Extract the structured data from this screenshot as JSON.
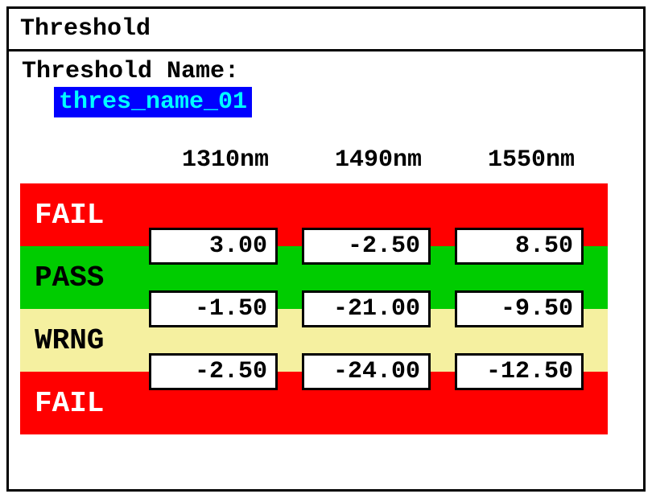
{
  "window": {
    "title": "Threshold"
  },
  "threshold": {
    "name_label": "Threshold Name:",
    "name_value": "thres_name_01"
  },
  "table": {
    "columns": [
      "1310nm",
      "1490nm",
      "1550nm"
    ],
    "bands": [
      {
        "label": "FAIL",
        "bg_color": "#ff0000",
        "text_color": "#ffffff"
      },
      {
        "label": "PASS",
        "bg_color": "#00cc00",
        "text_color": "#000000"
      },
      {
        "label": "WRNG",
        "bg_color": "#f5f0a0",
        "text_color": "#000000"
      },
      {
        "label": "FAIL",
        "bg_color": "#ff0000",
        "text_color": "#ffffff"
      }
    ],
    "rows": [
      [
        "3.00",
        "-2.50",
        "8.50"
      ],
      [
        "-1.50",
        "-21.00",
        "-9.50"
      ],
      [
        "-2.50",
        "-24.00",
        "-12.50"
      ]
    ],
    "cell_bg": "#ffffff",
    "cell_border": "#000000",
    "font_family": "Courier New",
    "highlight_bg": "#0000ff",
    "highlight_fg": "#00ffff"
  }
}
